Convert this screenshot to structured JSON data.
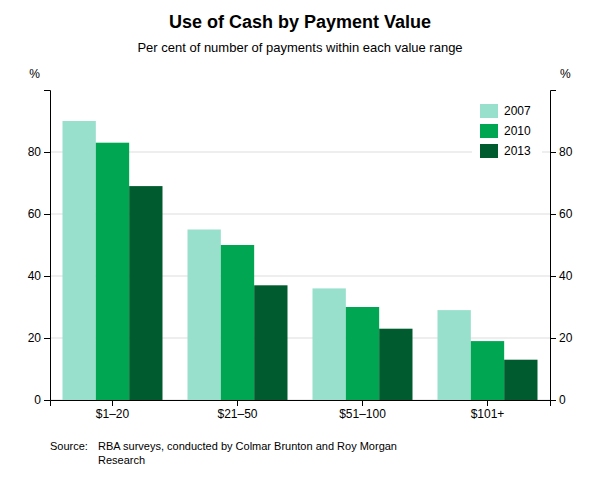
{
  "chart_data": {
    "type": "bar",
    "title": "Use of Cash by Payment Value",
    "subtitle": "Per cent of number of payments within each value range",
    "categories": [
      "$1–20",
      "$21–50",
      "$51–100",
      "$101+"
    ],
    "series": [
      {
        "name": "2007",
        "color": "#99e0cc",
        "values": [
          90,
          55,
          36,
          29
        ]
      },
      {
        "name": "2010",
        "color": "#00a651",
        "values": [
          83,
          50,
          30,
          19
        ]
      },
      {
        "name": "2013",
        "color": "#005c2e",
        "values": [
          69,
          37,
          23,
          13
        ]
      }
    ],
    "ylabel": "%",
    "y2label": "%",
    "ylim": [
      0,
      100
    ],
    "yticks": [
      0,
      20,
      40,
      60,
      80
    ],
    "y2lim": [
      0,
      100
    ],
    "y2ticks": [
      0,
      20,
      40,
      60,
      80
    ],
    "grid": true,
    "legend": "upper right",
    "annotations": [
      "Source:",
      "RBA surveys, conducted by Colmar Brunton and Roy Morgan\nResearch"
    ]
  }
}
